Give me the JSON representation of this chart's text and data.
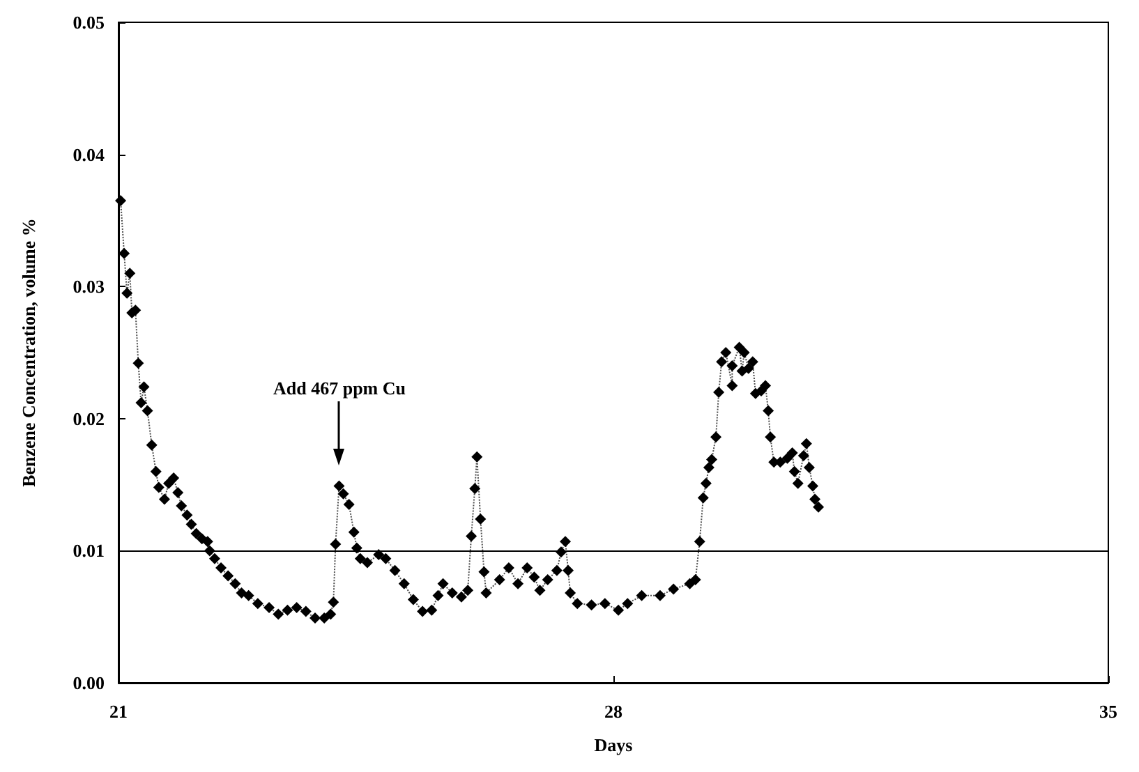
{
  "chart_data": {
    "type": "line",
    "xlabel": "Days",
    "ylabel": "Benzene Concentration, volume %",
    "xlim": [
      21,
      35
    ],
    "xticks": [
      21,
      28,
      35
    ],
    "ylim": [
      0,
      0.05
    ],
    "yticks": [
      {
        "value": 0,
        "label": "0.00"
      },
      0.01,
      0.02,
      0.03,
      0.04,
      0.05
    ],
    "grid": false,
    "marker": "diamond",
    "line_style": "dotted",
    "ref_lines": [
      {
        "axis": "y",
        "value": 0.01,
        "color": "#000000",
        "line_style": "solid"
      }
    ],
    "annotations": [
      "Add 467 ppm Cu"
    ],
    "series": [
      {
        "color": "#000000",
        "x": [
          21.03,
          21.08,
          21.12,
          21.16,
          21.19,
          21.24,
          21.28,
          21.32,
          21.36,
          21.41,
          21.47,
          21.53,
          21.57,
          21.65,
          21.71,
          21.78,
          21.84,
          21.89,
          21.97,
          22.03,
          22.1,
          22.18,
          22.26,
          22.29,
          22.36,
          22.45,
          22.55,
          22.65,
          22.74,
          22.84,
          22.97,
          23.13,
          23.26,
          23.39,
          23.52,
          23.65,
          23.78,
          23.91,
          24.0,
          24.04,
          24.07,
          24.12,
          24.18,
          24.26,
          24.33,
          24.37,
          24.42,
          24.52,
          24.68,
          24.78,
          24.91,
          25.04,
          25.17,
          25.3,
          25.43,
          25.52,
          25.59,
          25.72,
          25.85,
          25.94,
          25.99,
          26.04,
          26.07,
          26.12,
          26.17,
          26.2,
          26.39,
          26.52,
          26.65,
          26.78,
          26.88,
          26.96,
          27.07,
          27.2,
          27.26,
          27.32,
          27.36,
          27.39,
          27.49,
          27.69,
          27.88,
          28.07,
          28.2,
          28.4,
          28.66,
          28.85,
          29.08,
          29.16,
          29.22,
          29.27,
          29.31,
          29.35,
          29.39,
          29.45,
          29.49,
          29.53,
          29.59,
          29.68,
          29.68,
          29.78,
          29.82,
          29.85,
          29.91,
          29.97,
          30.01,
          30.09,
          30.15,
          30.19,
          30.22,
          30.27,
          30.36,
          30.46,
          30.53,
          30.56,
          30.61,
          30.69,
          30.73,
          30.77,
          30.82,
          30.85,
          30.9
        ],
        "values": [
          0.0365,
          0.0325,
          0.0295,
          0.031,
          0.028,
          0.0282,
          0.0242,
          0.0212,
          0.0224,
          0.0206,
          0.018,
          0.016,
          0.0148,
          0.0139,
          0.0151,
          0.0155,
          0.0144,
          0.0134,
          0.0127,
          0.012,
          0.0113,
          0.0109,
          0.0107,
          0.01,
          0.0094,
          0.0087,
          0.0081,
          0.0075,
          0.0068,
          0.0066,
          0.006,
          0.0057,
          0.0052,
          0.0055,
          0.0057,
          0.0054,
          0.0049,
          0.0049,
          0.0052,
          0.0061,
          0.0105,
          0.0149,
          0.0143,
          0.0135,
          0.0114,
          0.0102,
          0.0094,
          0.0091,
          0.0097,
          0.0094,
          0.0085,
          0.0075,
          0.0063,
          0.0054,
          0.0055,
          0.0066,
          0.0075,
          0.0068,
          0.0065,
          0.007,
          0.0111,
          0.0147,
          0.0171,
          0.0124,
          0.0084,
          0.0068,
          0.0078,
          0.0087,
          0.0075,
          0.0087,
          0.008,
          0.007,
          0.0078,
          0.0085,
          0.0099,
          0.0107,
          0.0085,
          0.0068,
          0.006,
          0.0059,
          0.006,
          0.0055,
          0.006,
          0.0066,
          0.0066,
          0.0071,
          0.0075,
          0.0078,
          0.0107,
          0.014,
          0.0151,
          0.0163,
          0.0169,
          0.0186,
          0.022,
          0.0243,
          0.025,
          0.0225,
          0.024,
          0.0254,
          0.0236,
          0.025,
          0.0238,
          0.0243,
          0.0219,
          0.0221,
          0.0225,
          0.0206,
          0.0186,
          0.0167,
          0.0167,
          0.017,
          0.0174,
          0.016,
          0.0151,
          0.0172,
          0.0181,
          0.0163,
          0.0149,
          0.0139,
          0.0133
        ]
      }
    ]
  }
}
